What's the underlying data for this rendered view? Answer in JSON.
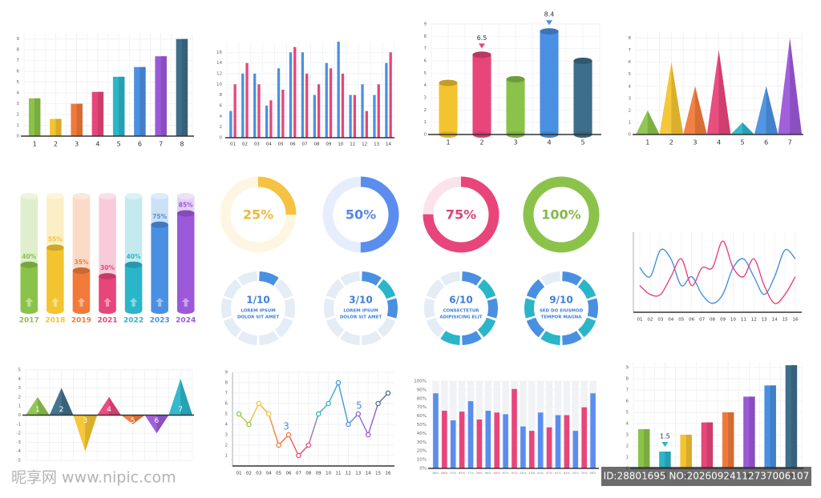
{
  "chart_data": [
    {
      "type": "bar",
      "style": "box",
      "categories": [
        "1",
        "2",
        "3",
        "4",
        "5",
        "6",
        "7",
        "8"
      ],
      "values": [
        3.5,
        1.6,
        3,
        4.1,
        5.5,
        6.4,
        7.4,
        9
      ],
      "colors": [
        "#8bc34a",
        "#f4c430",
        "#f07a3a",
        "#e8457a",
        "#2bb5c8",
        "#4a90e2",
        "#9b59d9",
        "#3d6e8a"
      ],
      "ylim": [
        0,
        9.5
      ],
      "yticks": [
        0,
        1,
        2,
        3,
        4,
        5,
        6,
        7,
        8,
        9
      ],
      "grid": true
    },
    {
      "type": "grouped-bar",
      "categories": [
        "01",
        "02",
        "03",
        "04",
        "05",
        "06",
        "07",
        "08",
        "09",
        "10",
        "11",
        "12",
        "13",
        "14"
      ],
      "series": [
        {
          "color": "#4a90e2",
          "values": [
            5,
            12,
            12,
            6,
            13,
            16,
            16,
            8,
            14,
            18,
            8,
            10,
            8,
            14
          ]
        },
        {
          "color": "#e8457a",
          "values": [
            10,
            14,
            10,
            7,
            9,
            17,
            12,
            10,
            13,
            12,
            8,
            5,
            10,
            16
          ]
        }
      ],
      "ylim": [
        0,
        18
      ],
      "yticks": [
        0,
        2,
        4,
        6,
        8,
        10,
        12,
        14,
        16
      ],
      "grid": true
    },
    {
      "type": "bar",
      "style": "cylinder",
      "categories": [
        "1",
        "2",
        "3",
        "4",
        "5"
      ],
      "values": [
        4.2,
        6.5,
        4.5,
        8.4,
        6
      ],
      "value_labels": [
        null,
        "6.5",
        null,
        "8.4",
        null
      ],
      "colors": [
        "#f4c430",
        "#e8457a",
        "#8bc34a",
        "#4a90e2",
        "#3d6e8a"
      ],
      "ylim": [
        0,
        9
      ],
      "yticks": [
        0,
        1,
        2,
        3,
        4,
        5,
        6,
        7,
        8,
        9
      ],
      "grid": true
    },
    {
      "type": "triangle",
      "categories": [
        "1",
        "2",
        "3",
        "4",
        "5",
        "6",
        "7"
      ],
      "values": [
        2,
        6,
        4,
        7,
        1,
        4,
        8
      ],
      "colors": [
        "#8bc34a",
        "#f4c430",
        "#f07a3a",
        "#e8457a",
        "#2bb5c8",
        "#4a90e2",
        "#9b59d9"
      ],
      "ylim": [
        0,
        8.5
      ],
      "yticks": [
        0,
        1,
        2,
        3,
        4,
        5,
        6,
        7,
        8
      ],
      "grid": true
    },
    {
      "type": "progress",
      "categories": [
        "2017",
        "2018",
        "2019",
        "2021",
        "2022",
        "2023",
        "2024"
      ],
      "values": [
        40,
        55,
        35,
        30,
        40,
        75,
        85
      ],
      "value_labels": [
        "40%",
        "55%",
        "35%",
        "30%",
        "40%",
        "75%",
        "85%"
      ],
      "colors": [
        "#8bc34a",
        "#f4c430",
        "#f07a3a",
        "#e8457a",
        "#2bb5c8",
        "#4a90e2",
        "#9b59d9"
      ],
      "ylim": [
        0,
        100
      ]
    },
    {
      "type": "donut",
      "values": [
        25,
        50,
        75,
        100
      ],
      "value_labels": [
        "25%",
        "50%",
        "75%",
        "100%"
      ],
      "colors": [
        "#f5c242",
        "#5b8def",
        "#e8457a",
        "#8bc34a"
      ],
      "range": [
        0,
        100
      ]
    },
    {
      "type": "segmented-donut",
      "values": [
        1,
        3,
        6,
        9
      ],
      "value_labels": [
        "1/10",
        "3/10",
        "6/10",
        "9/10"
      ],
      "segments": 10,
      "captions": [
        [
          "LOREM IPSUM",
          "DOLOR SIT AMET"
        ],
        [
          "LOREM IPSUM",
          "DOLOR SIT AMET"
        ],
        [
          "CONSECTETUR",
          "ADIPISICING ELIT"
        ],
        [
          "SED DO EIUSMOD",
          "TEMPOR MAGNA"
        ]
      ],
      "colors": [
        "#4a90e2",
        "#2bb5c8"
      ]
    },
    {
      "type": "line",
      "smooth": true,
      "categories": [
        "01",
        "02",
        "03",
        "04",
        "05",
        "06",
        "07",
        "08",
        "09",
        "10",
        "11",
        "12",
        "13",
        "14",
        "15",
        "16"
      ],
      "series": [
        {
          "color": "#4a90e2",
          "values": [
            5,
            4,
            7,
            6,
            3,
            4,
            2,
            1,
            2,
            5,
            6,
            4,
            2,
            4,
            7,
            6
          ]
        },
        {
          "color": "#e8457a",
          "values": [
            3,
            2,
            2,
            4,
            6,
            3,
            5,
            5,
            8,
            5,
            4,
            6,
            3,
            1,
            2,
            4
          ]
        }
      ],
      "ylim": [
        0,
        9
      ]
    },
    {
      "type": "triangle",
      "label_position": "inside",
      "categories": [
        "1",
        "2",
        "3",
        "4",
        "5",
        "6",
        "7"
      ],
      "values": [
        2,
        3,
        -4,
        2,
        -1,
        -2,
        4
      ],
      "colors": [
        "#8bc34a",
        "#3d6e8a",
        "#f4c430",
        "#e8457a",
        "#f07a3a",
        "#9b59d9",
        "#2bb5c8"
      ],
      "ylim": [
        -5,
        5
      ],
      "yticks": [
        -5,
        -4,
        -3,
        -2,
        -1,
        0,
        1,
        2,
        3,
        4,
        5
      ],
      "grid": true
    },
    {
      "type": "line",
      "markers": true,
      "categories": [
        "01",
        "02",
        "03",
        "04",
        "05",
        "06",
        "07",
        "08",
        "09",
        "10",
        "11",
        "12",
        "13",
        "14",
        "15",
        "16"
      ],
      "series": [
        {
          "values": [
            5,
            4,
            6,
            5,
            2,
            3,
            1,
            2,
            5,
            6,
            8,
            4,
            5,
            3,
            6,
            7
          ]
        }
      ],
      "colors": [
        "#8bc34a",
        "#f4c430",
        "#f07a3a",
        "#e8457a",
        "#2bb5c8",
        "#4a90e2",
        "#9b59d9",
        "#3d6e8a"
      ],
      "annotations": [
        "3",
        "5"
      ],
      "ylim": [
        0,
        9
      ],
      "yticks": [
        1,
        2,
        3,
        4,
        5,
        6,
        7,
        8,
        9
      ],
      "grid": true
    },
    {
      "type": "bar",
      "style": "plain",
      "label_position": "below",
      "values": [
        86,
        66,
        55,
        65,
        77,
        56,
        66,
        64,
        62,
        91,
        48,
        43,
        64,
        47,
        61,
        61,
        43,
        70,
        86
      ],
      "value_labels": [
        "86%",
        "66%",
        "55%",
        "65%",
        "77%",
        "56%",
        "66%",
        "64%",
        "62%",
        "91%",
        "48%",
        "43%",
        "64%",
        "47%",
        "61%",
        "61%",
        "43%",
        "70%",
        "86%"
      ],
      "colors": [
        "#5b8def",
        "#e8457a"
      ],
      "ylim": [
        0,
        100
      ],
      "yticks": [
        {
          "value": 0,
          "label": "0%"
        },
        {
          "value": 10,
          "label": "10%"
        },
        {
          "value": 20,
          "label": "20%"
        },
        {
          "value": 30,
          "label": "30%"
        },
        {
          "value": 40,
          "label": "40%"
        },
        {
          "value": 50,
          "label": "50%"
        },
        {
          "value": 60,
          "label": "60%"
        },
        {
          "value": 70,
          "label": "70%"
        },
        {
          "value": 80,
          "label": "80%"
        },
        {
          "value": 90,
          "label": "90%"
        },
        {
          "value": 100,
          "label": "100%"
        }
      ],
      "grid": true
    },
    {
      "type": "bar",
      "style": "box",
      "categories": [
        "1",
        "2",
        "3",
        "4",
        "5",
        "6",
        "7",
        "8"
      ],
      "values": [
        3.5,
        1.5,
        3,
        4.1,
        5,
        6.4,
        7.4,
        9.2
      ],
      "value_labels": [
        null,
        "1.5",
        null,
        null,
        null,
        null,
        null,
        null
      ],
      "colors": [
        "#8bc34a",
        "#2bb5c8",
        "#f4c430",
        "#e8457a",
        "#f07a3a",
        "#9b59d9",
        "#4a90e2",
        "#3d6e8a"
      ],
      "ylim": [
        0,
        9.5
      ],
      "yticks": [
        0,
        1,
        2,
        3,
        4,
        5,
        6,
        7,
        8,
        9
      ],
      "grid": true
    }
  ],
  "watermark": {
    "site": "昵享网 www.nipic.com",
    "id": "ID:28801695 NO:20260924112737006107"
  }
}
